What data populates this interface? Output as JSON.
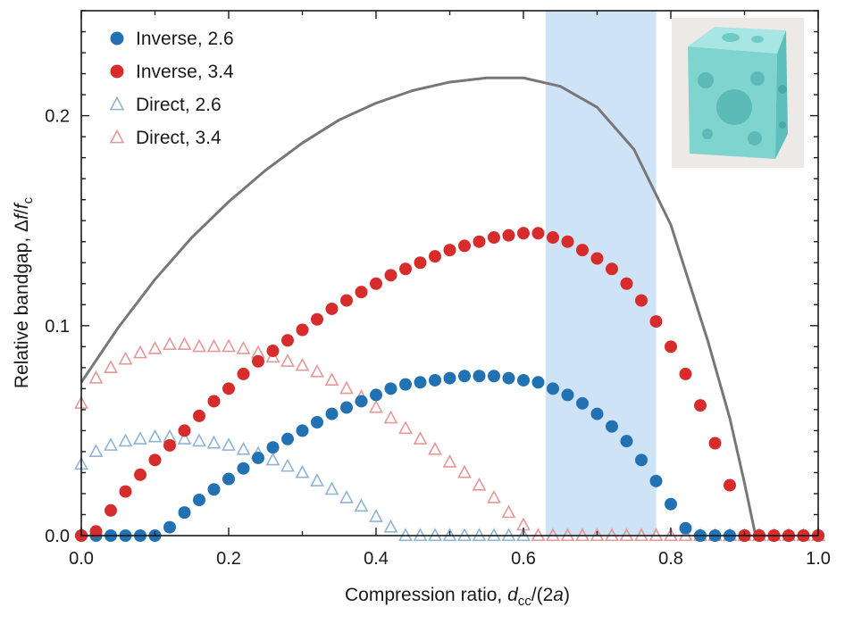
{
  "chart_data": {
    "type": "scatter",
    "xlabel": "Compression ratio, dcc/(2a)",
    "ylabel": "Relative bandgap, Δf/fc",
    "xlim": [
      0.0,
      1.0
    ],
    "ylim": [
      0.0,
      0.25
    ],
    "x_ticks": [
      0.0,
      0.2,
      0.4,
      0.6,
      0.8,
      1.0
    ],
    "x_tick_labels": [
      "0.0",
      "0.2",
      "0.4",
      "0.6",
      "0.8",
      "1.0"
    ],
    "y_ticks": [
      0.0,
      0.1,
      0.2
    ],
    "y_tick_labels": [
      "0.0",
      "0.1",
      "0.2"
    ],
    "grid": false,
    "legend_position": "top-left",
    "highlight_band": {
      "x_range": [
        0.63,
        0.78
      ],
      "color": "#cfe3f7"
    },
    "inset": {
      "position": "top-right",
      "description_icon": "3d-cube-structure-icon",
      "color": "#8fdad8"
    },
    "colors": {
      "inverse_2_6": "#2272b3",
      "inverse_3_4": "#d62c2c",
      "direct_2_6": "#8eb4d6",
      "direct_3_4": "#e59898",
      "curve": "#777777"
    },
    "series": [
      {
        "name": "Inverse, 2.6",
        "marker": "filled-circle",
        "x": [
          0.0,
          0.02,
          0.04,
          0.06,
          0.08,
          0.1,
          0.12,
          0.14,
          0.16,
          0.18,
          0.2,
          0.22,
          0.24,
          0.26,
          0.28,
          0.3,
          0.32,
          0.34,
          0.36,
          0.38,
          0.4,
          0.42,
          0.44,
          0.46,
          0.48,
          0.5,
          0.52,
          0.54,
          0.56,
          0.58,
          0.6,
          0.62,
          0.64,
          0.66,
          0.68,
          0.7,
          0.72,
          0.74,
          0.76,
          0.78,
          0.8,
          0.82,
          0.84,
          0.86,
          0.88,
          0.9,
          0.92,
          0.94,
          0.96,
          0.98,
          1.0
        ],
        "y": [
          0.0,
          0.0,
          0.0,
          0.0,
          0.0,
          0.0,
          0.004,
          0.011,
          0.017,
          0.022,
          0.027,
          0.032,
          0.037,
          0.042,
          0.046,
          0.05,
          0.054,
          0.058,
          0.061,
          0.064,
          0.067,
          0.07,
          0.072,
          0.073,
          0.074,
          0.075,
          0.076,
          0.076,
          0.076,
          0.075,
          0.074,
          0.073,
          0.07,
          0.067,
          0.063,
          0.058,
          0.052,
          0.045,
          0.036,
          0.026,
          0.015,
          0.0035,
          0.0,
          0.0,
          0.0,
          0.0,
          0.0,
          0.0,
          0.0,
          0.0,
          0.0
        ]
      },
      {
        "name": "Inverse, 3.4",
        "marker": "filled-circle",
        "x": [
          0.0,
          0.02,
          0.04,
          0.06,
          0.08,
          0.1,
          0.12,
          0.14,
          0.16,
          0.18,
          0.2,
          0.22,
          0.24,
          0.26,
          0.28,
          0.3,
          0.32,
          0.34,
          0.36,
          0.38,
          0.4,
          0.42,
          0.44,
          0.46,
          0.48,
          0.5,
          0.52,
          0.54,
          0.56,
          0.58,
          0.6,
          0.62,
          0.64,
          0.66,
          0.68,
          0.7,
          0.72,
          0.74,
          0.76,
          0.78,
          0.8,
          0.82,
          0.84,
          0.86,
          0.88,
          0.9,
          0.92,
          0.94,
          0.96,
          0.98,
          1.0
        ],
        "y": [
          0.0,
          0.002,
          0.012,
          0.021,
          0.029,
          0.036,
          0.043,
          0.05,
          0.057,
          0.064,
          0.07,
          0.077,
          0.083,
          0.088,
          0.093,
          0.098,
          0.103,
          0.108,
          0.112,
          0.116,
          0.12,
          0.124,
          0.127,
          0.13,
          0.133,
          0.136,
          0.138,
          0.14,
          0.142,
          0.143,
          0.144,
          0.144,
          0.142,
          0.14,
          0.136,
          0.132,
          0.127,
          0.12,
          0.112,
          0.102,
          0.09,
          0.077,
          0.062,
          0.044,
          0.024,
          0.0,
          0.0,
          0.0,
          0.0,
          0.0,
          0.0
        ]
      },
      {
        "name": "Direct, 2.6",
        "marker": "open-triangle",
        "x": [
          0.0,
          0.02,
          0.04,
          0.06,
          0.08,
          0.1,
          0.12,
          0.14,
          0.16,
          0.18,
          0.2,
          0.22,
          0.24,
          0.26,
          0.28,
          0.3,
          0.32,
          0.34,
          0.36,
          0.38,
          0.4,
          0.42,
          0.44,
          0.46,
          0.48,
          0.5,
          0.52,
          0.54,
          0.56,
          0.58,
          0.6,
          0.62,
          0.64,
          0.66,
          0.68,
          0.7,
          0.72,
          0.74,
          0.76,
          0.78,
          0.8,
          0.82,
          0.84,
          0.86,
          0.88,
          0.9,
          0.92,
          0.94,
          0.96,
          0.98,
          1.0
        ],
        "y": [
          0.034,
          0.04,
          0.043,
          0.045,
          0.046,
          0.047,
          0.047,
          0.046,
          0.045,
          0.044,
          0.043,
          0.041,
          0.039,
          0.036,
          0.033,
          0.03,
          0.026,
          0.022,
          0.018,
          0.014,
          0.009,
          0.004,
          0.0,
          0.0,
          0.0,
          0.0,
          0.0,
          0.0,
          0.0,
          0.0,
          0.0,
          0.0,
          0.0,
          0.0,
          0.0,
          0.0,
          0.0,
          0.0,
          0.0,
          0.0,
          0.0,
          0.0,
          0.0,
          0.0,
          0.0,
          0.0,
          0.0,
          0.0,
          0.0,
          0.0,
          0.0
        ]
      },
      {
        "name": "Direct, 3.4",
        "marker": "open-triangle",
        "x": [
          0.0,
          0.02,
          0.04,
          0.06,
          0.08,
          0.1,
          0.12,
          0.14,
          0.16,
          0.18,
          0.2,
          0.22,
          0.24,
          0.26,
          0.28,
          0.3,
          0.32,
          0.34,
          0.36,
          0.38,
          0.4,
          0.42,
          0.44,
          0.46,
          0.48,
          0.5,
          0.52,
          0.54,
          0.56,
          0.58,
          0.6,
          0.62,
          0.64,
          0.66,
          0.68,
          0.7,
          0.72,
          0.74,
          0.76,
          0.78,
          0.8,
          0.82,
          0.84,
          0.86,
          0.88,
          0.9,
          0.92,
          0.94,
          0.96,
          0.98,
          1.0
        ],
        "y": [
          0.063,
          0.075,
          0.08,
          0.084,
          0.087,
          0.089,
          0.091,
          0.091,
          0.09,
          0.09,
          0.09,
          0.089,
          0.087,
          0.085,
          0.083,
          0.081,
          0.078,
          0.074,
          0.07,
          0.066,
          0.061,
          0.056,
          0.051,
          0.046,
          0.041,
          0.035,
          0.03,
          0.024,
          0.018,
          0.011,
          0.005,
          0.0,
          0.0,
          0.0,
          0.0,
          0.0,
          0.0,
          0.0,
          0.0,
          0.0,
          0.0,
          0.0,
          0.0,
          0.0,
          0.0,
          0.0,
          0.0,
          0.0,
          0.0,
          0.0,
          0.0
        ]
      },
      {
        "marker": "line",
        "x": [
          0.0,
          0.05,
          0.1,
          0.15,
          0.2,
          0.25,
          0.3,
          0.35,
          0.4,
          0.45,
          0.5,
          0.55,
          0.6,
          0.65,
          0.7,
          0.75,
          0.8,
          0.85,
          0.88,
          0.9,
          0.915
        ],
        "y": [
          0.073,
          0.099,
          0.122,
          0.142,
          0.159,
          0.174,
          0.187,
          0.198,
          0.206,
          0.212,
          0.216,
          0.218,
          0.218,
          0.214,
          0.204,
          0.184,
          0.148,
          0.093,
          0.056,
          0.025,
          0.0
        ]
      }
    ]
  }
}
